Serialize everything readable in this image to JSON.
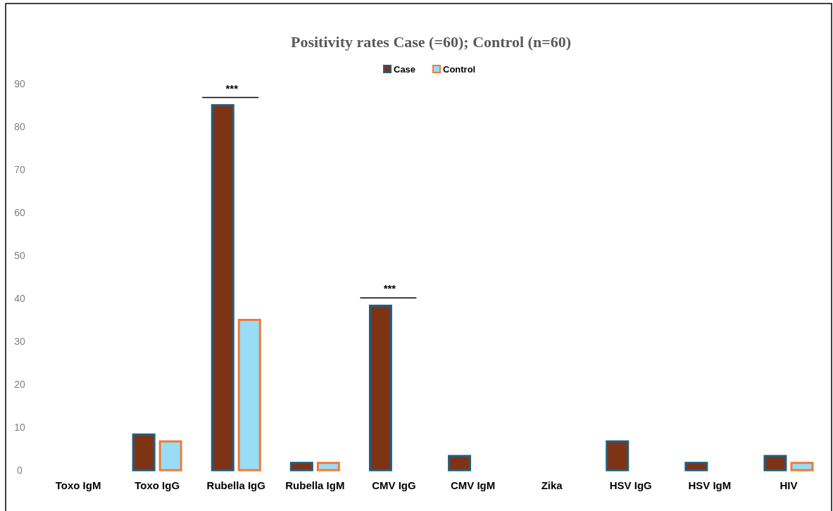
{
  "chart_data": {
    "type": "bar",
    "title": "Positivity rates Case (=60); Control (n=60)",
    "categories": [
      "Toxo IgM",
      "Toxo IgG",
      "Rubella IgG",
      "Rubella IgM",
      "CMV IgG",
      "CMV IgM",
      "Zika",
      "HSV IgG",
      "HSV IgM",
      "HIV"
    ],
    "series": [
      {
        "name": "Case",
        "color": "#7f3315",
        "values": [
          0,
          8.3,
          85,
          1.7,
          38.3,
          3.3,
          0,
          6.7,
          1.7,
          3.3
        ]
      },
      {
        "name": "Control",
        "color": "#99dcf6",
        "values": [
          0,
          6.7,
          35,
          1.7,
          0,
          0,
          0,
          0,
          0,
          1.7
        ]
      }
    ],
    "ylim": [
      0,
      90
    ],
    "yticks": [
      0,
      10,
      20,
      30,
      40,
      50,
      60,
      70,
      80,
      90
    ],
    "grid": false,
    "legend": "top",
    "annotations": [
      "***",
      "***"
    ]
  }
}
